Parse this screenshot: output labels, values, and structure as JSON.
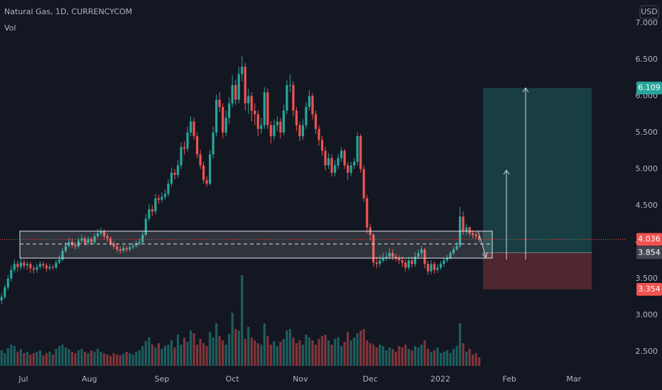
{
  "chart_data": {
    "type": "candlestick",
    "title": "Natural Gas, 1D, CURRENCYCOM",
    "volume_label": "Vol",
    "currency": "USD",
    "up_color": "#26a69a",
    "down_color": "#ef5350",
    "xlim": [
      -0.5,
      194.5
    ],
    "xticks": [
      {
        "value": 6.8,
        "label": "Jul"
      },
      {
        "value": 27.4,
        "label": "Aug"
      },
      {
        "value": 50,
        "label": "Sep"
      },
      {
        "value": 72,
        "label": "Oct"
      },
      {
        "value": 93.2,
        "label": "Nov"
      },
      {
        "value": 115,
        "label": "Dec"
      },
      {
        "value": 136.9,
        "label": "2022"
      },
      {
        "value": 158.4,
        "label": "Feb"
      },
      {
        "value": 178.5,
        "label": "Mar"
      }
    ],
    "ylim": [
      2.305,
      7.12
    ],
    "yticks": [
      {
        "value": 2.5,
        "label": "2.500"
      },
      {
        "value": 3,
        "label": "3.000"
      },
      {
        "value": 3.5,
        "label": "3.500"
      },
      {
        "value": 4,
        "label": "4.000"
      },
      {
        "value": 4.5,
        "label": "4.500"
      },
      {
        "value": 5,
        "label": "5.000"
      },
      {
        "value": 5.5,
        "label": "5.500"
      },
      {
        "value": 6,
        "label": "6.000"
      },
      {
        "value": 6.5,
        "label": "6.500"
      },
      {
        "value": 7,
        "label": "7.000"
      }
    ],
    "open": [
      3.2,
      3.25,
      3.38,
      3.5,
      3.62,
      3.7,
      3.66,
      3.72,
      3.68,
      3.7,
      3.64,
      3.62,
      3.66,
      3.7,
      3.68,
      3.64,
      3.66,
      3.65,
      3.72,
      3.76,
      3.88,
      3.95,
      4.0,
      3.96,
      3.94,
      4.02,
      4.05,
      3.99,
      4.04,
      4.0,
      4.08,
      4.12,
      4.15,
      4.08,
      4.05,
      3.98,
      3.94,
      3.9,
      3.88,
      3.92,
      3.9,
      3.93,
      3.95,
      3.98,
      4.0,
      4.1,
      4.32,
      4.45,
      4.42,
      4.6,
      4.58,
      4.62,
      4.66,
      4.8,
      4.95,
      4.92,
      5.05,
      5.3,
      5.28,
      5.5,
      5.65,
      5.45,
      5.2,
      5.05,
      4.85,
      4.8,
      5.2,
      5.5,
      5.95,
      5.85,
      5.5,
      5.7,
      5.9,
      6.15,
      5.95,
      6.3,
      6.4,
      5.9,
      6.0,
      5.8,
      5.75,
      5.55,
      5.6,
      6.05,
      5.6,
      5.45,
      5.6,
      5.65,
      5.5,
      5.8,
      6.15,
      6.15,
      5.8,
      5.6,
      5.45,
      5.6,
      5.85,
      6.0,
      5.75,
      5.55,
      5.4,
      5.25,
      5.05,
      5.15,
      4.95,
      5.05,
      5.15,
      5.25,
      5.05,
      4.95,
      5.05,
      5.1,
      5.45,
      5.0,
      4.6,
      4.2,
      4.1,
      3.72,
      3.7,
      3.75,
      3.78,
      3.8,
      3.85,
      3.8,
      3.78,
      3.75,
      3.72,
      3.65,
      3.75,
      3.7,
      3.8,
      3.85,
      3.9,
      3.7,
      3.6,
      3.7,
      3.62,
      3.65,
      3.7,
      3.75,
      3.78,
      3.85,
      3.9,
      3.95,
      4.35,
      4.15,
      4.2,
      4.12,
      4.1,
      4.08
    ],
    "high": [
      3.3,
      3.42,
      3.55,
      3.68,
      3.76,
      3.74,
      3.78,
      3.76,
      3.74,
      3.73,
      3.68,
      3.7,
      3.74,
      3.73,
      3.71,
      3.7,
      3.69,
      3.76,
      3.82,
      3.92,
      4.0,
      4.06,
      4.04,
      4.0,
      4.06,
      4.1,
      4.08,
      4.08,
      4.07,
      4.12,
      4.18,
      4.2,
      4.18,
      4.12,
      4.08,
      4.02,
      3.97,
      3.94,
      3.96,
      3.95,
      3.97,
      3.99,
      4.02,
      4.05,
      4.15,
      4.38,
      4.52,
      4.5,
      4.66,
      4.65,
      4.68,
      4.72,
      4.86,
      5.02,
      5.0,
      5.12,
      5.36,
      5.38,
      5.58,
      5.72,
      5.7,
      5.5,
      5.26,
      5.1,
      4.9,
      5.26,
      5.58,
      6.02,
      6.05,
      5.9,
      5.8,
      5.98,
      6.28,
      6.22,
      6.4,
      6.55,
      6.45,
      6.1,
      6.05,
      5.9,
      5.8,
      5.7,
      6.12,
      6.1,
      5.65,
      5.68,
      5.72,
      5.7,
      5.88,
      6.22,
      6.3,
      6.2,
      5.85,
      5.65,
      5.68,
      5.92,
      6.08,
      6.04,
      5.8,
      5.6,
      5.45,
      5.3,
      5.22,
      5.2,
      5.12,
      5.2,
      5.3,
      5.28,
      5.1,
      5.1,
      5.15,
      5.5,
      5.48,
      5.05,
      4.65,
      4.25,
      4.12,
      3.8,
      3.82,
      3.85,
      3.86,
      3.92,
      3.9,
      3.84,
      3.82,
      3.8,
      3.76,
      3.8,
      3.8,
      3.86,
      3.9,
      3.95,
      3.92,
      3.74,
      3.75,
      3.73,
      3.7,
      3.74,
      3.78,
      3.82,
      3.88,
      3.94,
      4.0,
      4.48,
      4.42,
      4.25,
      4.22,
      4.16,
      4.14,
      4.1
    ],
    "low": [
      3.15,
      3.22,
      3.34,
      3.46,
      3.58,
      3.6,
      3.62,
      3.63,
      3.62,
      3.58,
      3.57,
      3.58,
      3.63,
      3.64,
      3.6,
      3.61,
      3.62,
      3.63,
      3.7,
      3.74,
      3.85,
      3.92,
      3.92,
      3.9,
      3.91,
      3.98,
      3.95,
      3.96,
      3.96,
      3.97,
      4.05,
      4.08,
      4.04,
      4.0,
      3.94,
      3.9,
      3.86,
      3.84,
      3.85,
      3.86,
      3.87,
      3.9,
      3.92,
      3.95,
      3.97,
      4.08,
      4.28,
      4.36,
      4.38,
      4.52,
      4.54,
      4.58,
      4.62,
      4.76,
      4.86,
      4.88,
      5.0,
      5.2,
      5.24,
      5.45,
      5.4,
      5.15,
      5.0,
      4.8,
      4.76,
      4.78,
      5.15,
      5.45,
      5.78,
      5.42,
      5.45,
      5.62,
      5.85,
      5.88,
      5.9,
      6.2,
      5.8,
      5.75,
      5.65,
      5.6,
      5.45,
      5.48,
      5.55,
      5.55,
      5.35,
      5.4,
      5.52,
      5.42,
      5.46,
      5.75,
      6.05,
      5.72,
      5.52,
      5.38,
      5.4,
      5.55,
      5.8,
      5.68,
      5.48,
      5.32,
      5.18,
      4.98,
      5.0,
      4.9,
      4.9,
      5.0,
      5.1,
      5.0,
      4.85,
      4.9,
      5.0,
      5.05,
      4.95,
      4.55,
      4.12,
      4.02,
      3.66,
      3.64,
      3.66,
      3.72,
      3.74,
      3.76,
      3.75,
      3.73,
      3.7,
      3.66,
      3.6,
      3.62,
      3.65,
      3.66,
      3.76,
      3.8,
      3.64,
      3.55,
      3.56,
      3.57,
      3.58,
      3.62,
      3.66,
      3.72,
      3.76,
      3.82,
      3.88,
      3.92,
      4.1,
      4.1,
      4.08,
      4.05,
      4.04,
      4.0
    ],
    "close": [
      3.25,
      3.38,
      3.5,
      3.62,
      3.7,
      3.66,
      3.72,
      3.68,
      3.7,
      3.64,
      3.62,
      3.66,
      3.7,
      3.68,
      3.64,
      3.66,
      3.65,
      3.72,
      3.76,
      3.88,
      3.95,
      4.0,
      3.96,
      3.94,
      4.02,
      4.05,
      3.99,
      4.04,
      4.0,
      4.08,
      4.12,
      4.15,
      4.08,
      4.05,
      3.98,
      3.94,
      3.9,
      3.88,
      3.92,
      3.9,
      3.93,
      3.95,
      3.98,
      4.0,
      4.1,
      4.32,
      4.45,
      4.42,
      4.6,
      4.58,
      4.62,
      4.66,
      4.8,
      4.95,
      4.92,
      5.05,
      5.3,
      5.28,
      5.5,
      5.65,
      5.45,
      5.2,
      5.05,
      4.85,
      4.8,
      5.2,
      5.5,
      5.95,
      5.85,
      5.5,
      5.7,
      5.9,
      6.15,
      5.95,
      6.3,
      6.4,
      5.9,
      6.0,
      5.8,
      5.75,
      5.55,
      5.6,
      6.05,
      5.6,
      5.45,
      5.6,
      5.65,
      5.5,
      5.8,
      6.15,
      6.15,
      5.8,
      5.6,
      5.45,
      5.6,
      5.85,
      6.0,
      5.75,
      5.55,
      5.4,
      5.25,
      5.05,
      5.15,
      4.95,
      5.05,
      5.15,
      5.25,
      5.05,
      4.95,
      5.05,
      5.1,
      5.45,
      5.0,
      4.6,
      4.2,
      4.1,
      3.72,
      3.7,
      3.75,
      3.78,
      3.8,
      3.85,
      3.8,
      3.78,
      3.75,
      3.72,
      3.65,
      3.75,
      3.7,
      3.8,
      3.85,
      3.9,
      3.7,
      3.6,
      3.7,
      3.62,
      3.65,
      3.7,
      3.75,
      3.78,
      3.85,
      3.9,
      3.95,
      4.35,
      4.15,
      4.2,
      4.12,
      4.1,
      4.08,
      4.036
    ],
    "volume": [
      22,
      18,
      25,
      30,
      28,
      20,
      24,
      18,
      20,
      16,
      18,
      20,
      22,
      15,
      18,
      20,
      16,
      24,
      28,
      30,
      26,
      24,
      20,
      18,
      22,
      24,
      20,
      18,
      22,
      20,
      24,
      20,
      18,
      16,
      14,
      18,
      16,
      15,
      17,
      20,
      18,
      16,
      20,
      22,
      28,
      35,
      40,
      30,
      26,
      32,
      24,
      28,
      30,
      36,
      26,
      44,
      30,
      40,
      34,
      50,
      46,
      30,
      38,
      32,
      28,
      48,
      40,
      60,
      42,
      36,
      30,
      45,
      75,
      52,
      50,
      128,
      38,
      55,
      40,
      36,
      32,
      30,
      60,
      42,
      30,
      35,
      28,
      34,
      38,
      50,
      52,
      40,
      32,
      36,
      30,
      44,
      40,
      36,
      30,
      38,
      42,
      44,
      36,
      30,
      38,
      40,
      28,
      34,
      48,
      36,
      40,
      46,
      50,
      52,
      36,
      32,
      30,
      26,
      30,
      28,
      22,
      26,
      24,
      20,
      28,
      26,
      30,
      24,
      22,
      28,
      26,
      30,
      36,
      24,
      20,
      22,
      26,
      18,
      20,
      22,
      18,
      24,
      28,
      60,
      32,
      20,
      24,
      16,
      18,
      12
    ],
    "last_price": 4.036,
    "position": {
      "target": 6.109,
      "entry": 3.854,
      "stop": 3.354
    }
  }
}
